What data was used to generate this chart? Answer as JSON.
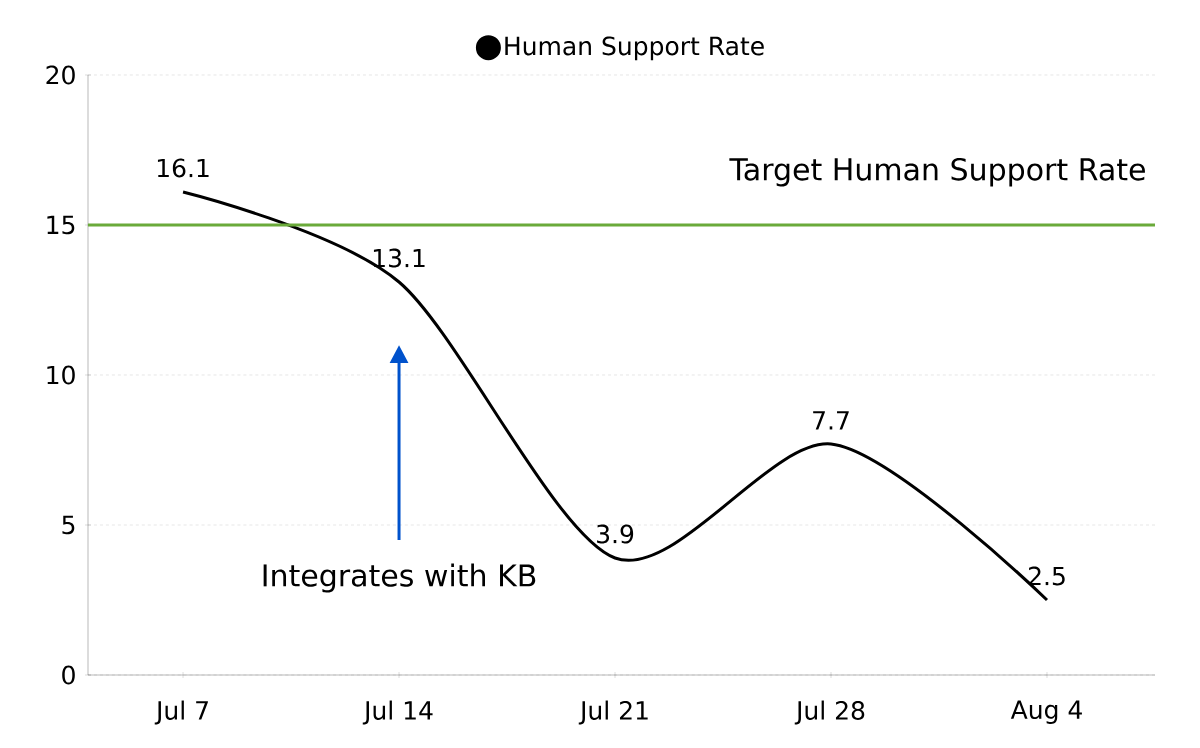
{
  "chart_data": {
    "type": "line",
    "categories": [
      "Jul 7",
      "Jul 14",
      "Jul 21",
      "Jul 28",
      "Aug 4"
    ],
    "series": [
      {
        "name": "Human Support Rate",
        "color": "#000000",
        "values": [
          16.1,
          13.1,
          3.9,
          7.7,
          2.5
        ]
      }
    ],
    "ylim": [
      0,
      20
    ],
    "yticks": [
      0,
      5,
      10,
      15,
      20
    ],
    "grid": "y",
    "legend": "top",
    "marker": "none",
    "line_style": "solid",
    "data_labels": true,
    "ref_lines": [
      {
        "axis": "y",
        "value": 15,
        "label": "Target Human Support Rate",
        "color": "#6aaa3a"
      }
    ],
    "annotations": [
      "Integrates with KB"
    ]
  }
}
